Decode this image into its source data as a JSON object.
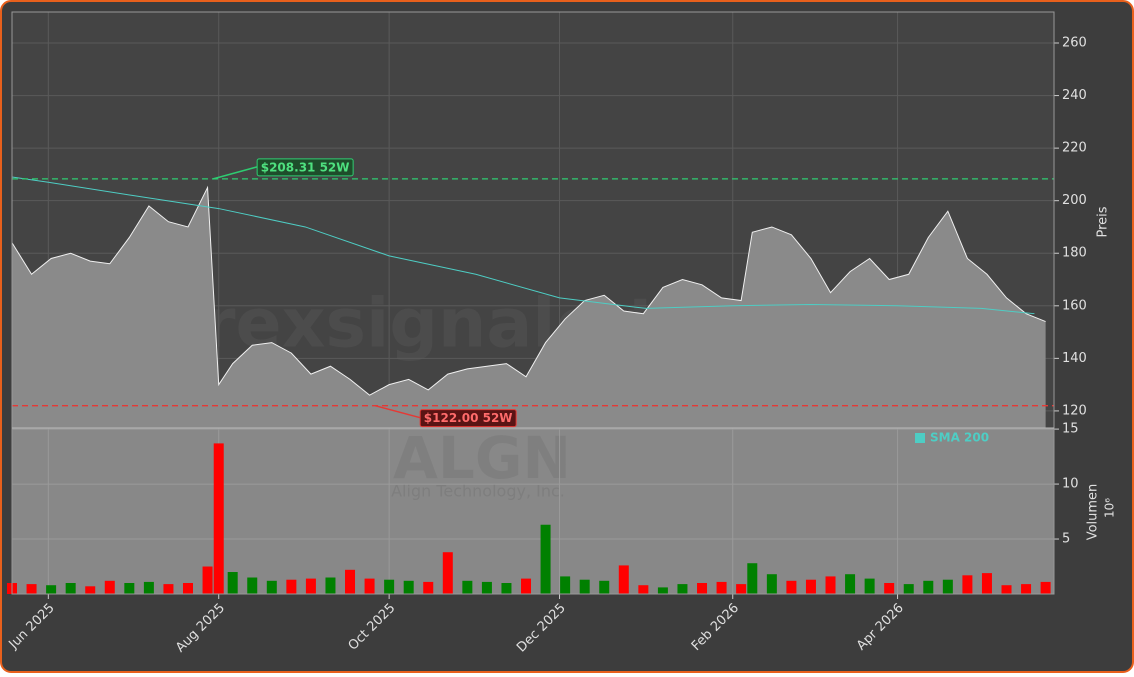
{
  "chart_data": [
    {
      "type": "area",
      "x": [
        "2025-05-19",
        "2025-05-26",
        "2025-06-02",
        "2025-06-09",
        "2025-06-16",
        "2025-06-23",
        "2025-06-30",
        "2025-07-07",
        "2025-07-14",
        "2025-07-21",
        "2025-07-28",
        "2025-08-01",
        "2025-08-06",
        "2025-08-13",
        "2025-08-20",
        "2025-08-27",
        "2025-09-03",
        "2025-09-10",
        "2025-09-17",
        "2025-09-24",
        "2025-10-01",
        "2025-10-08",
        "2025-10-15",
        "2025-10-22",
        "2025-10-29",
        "2025-11-05",
        "2025-11-12",
        "2025-11-19",
        "2025-11-26",
        "2025-12-03",
        "2025-12-10",
        "2025-12-17",
        "2025-12-24",
        "2025-12-31",
        "2026-01-07",
        "2026-01-14",
        "2026-01-21",
        "2026-01-28",
        "2026-02-04",
        "2026-02-08",
        "2026-02-15",
        "2026-02-22",
        "2026-03-01",
        "2026-03-08",
        "2026-03-15",
        "2026-03-22",
        "2026-03-29",
        "2026-04-05",
        "2026-04-12",
        "2026-04-19",
        "2026-04-26",
        "2026-05-03",
        "2026-05-10",
        "2026-05-17",
        "2026-05-24"
      ],
      "values": [
        184,
        172,
        178,
        180,
        177,
        176,
        186,
        198,
        192,
        190,
        205,
        130,
        138,
        145,
        146,
        142,
        134,
        137,
        132,
        126,
        130,
        132,
        128,
        134,
        136,
        137,
        138,
        133,
        146,
        155,
        162,
        164,
        158,
        157,
        167,
        170,
        168,
        163,
        162,
        188,
        190,
        187,
        178,
        165,
        173,
        178,
        170,
        172,
        186,
        196,
        178,
        172,
        163,
        157,
        154
      ],
      "color": "#8a8a8a",
      "lines": [
        {
          "name": "SMA 200",
          "color": "#4ecdc4",
          "x": [
            "2025-05-19",
            "2025-06-01",
            "2025-07-01",
            "2025-08-01",
            "2025-09-01",
            "2025-10-01",
            "2025-11-01",
            "2025-12-01",
            "2026-01-01",
            "2026-02-01",
            "2026-03-01",
            "2026-04-01",
            "2026-05-01",
            "2026-05-20"
          ],
          "values": [
            209,
            207,
            202,
            197,
            190,
            179,
            172,
            163,
            159,
            160,
            160.5,
            160,
            159,
            157
          ]
        }
      ],
      "annotations": [
        {
          "text": "$208.31 52W",
          "value": 208.31,
          "x": "2025-07-30",
          "color": "#2ecc71"
        },
        {
          "text": "$122.00 52W",
          "value": 122.0,
          "x": "2025-09-26",
          "color": "#e53935"
        }
      ],
      "xlim": [
        "2025-05-19",
        "2026-05-27"
      ],
      "ylim": [
        113.5,
        271.8
      ],
      "yticks": [
        120,
        140,
        160,
        180,
        200,
        220,
        240,
        260
      ],
      "ylabel": "Preis",
      "grid": true,
      "watermark": [
        "forexsignale.trade",
        "ALGN",
        "Align Technology, Inc."
      ]
    },
    {
      "type": "bar",
      "values": [
        1.0,
        0.9,
        0.8,
        1.0,
        0.7,
        1.2,
        1.0,
        1.1,
        0.9,
        1.0,
        2.5,
        13.7,
        2.0,
        1.5,
        1.2,
        1.3,
        1.4,
        1.5,
        2.2,
        1.4,
        1.3,
        1.2,
        1.1,
        3.8,
        1.2,
        1.1,
        1.0,
        1.4,
        6.3,
        1.6,
        1.3,
        1.2,
        2.6,
        0.8,
        0.6,
        0.9,
        1.0,
        1.1,
        0.9,
        2.8,
        1.8,
        1.2,
        1.3,
        1.6,
        1.8,
        1.4,
        1.0,
        0.9,
        1.2,
        1.3,
        1.7,
        1.9,
        0.8,
        0.9,
        1.1
      ],
      "colors": [
        "#ff0000",
        "#ff0000",
        "#008000",
        "#008000",
        "#ff0000",
        "#ff0000",
        "#008000",
        "#008000",
        "#ff0000",
        "#ff0000",
        "#ff0000",
        "#ff0000",
        "#008000",
        "#008000",
        "#008000",
        "#ff0000",
        "#ff0000",
        "#008000",
        "#ff0000",
        "#ff0000",
        "#008000",
        "#008000",
        "#ff0000",
        "#ff0000",
        "#008000",
        "#008000",
        "#008000",
        "#ff0000",
        "#008000",
        "#008000",
        "#008000",
        "#008000",
        "#ff0000",
        "#ff0000",
        "#008000",
        "#008000",
        "#ff0000",
        "#ff0000",
        "#ff0000",
        "#008000",
        "#008000",
        "#ff0000",
        "#ff0000",
        "#ff0000",
        "#008000",
        "#008000",
        "#ff0000",
        "#008000",
        "#008000",
        "#008000",
        "#ff0000",
        "#ff0000",
        "#ff0000",
        "#ff0000",
        "#ff0000"
      ],
      "ylim": [
        0,
        15.1
      ],
      "yticks": [
        5,
        10,
        15
      ],
      "ylabel": "Volumen",
      "exponent": "10⁶",
      "xticks": [
        {
          "value": "2025-06-01",
          "label": "Jun 2025"
        },
        {
          "value": "2025-08-01",
          "label": "Aug 2025"
        },
        {
          "value": "2025-10-01",
          "label": "Oct 2025"
        },
        {
          "value": "2025-12-01",
          "label": "Dec 2025"
        },
        {
          "value": "2026-02-01",
          "label": "Feb 2026"
        },
        {
          "value": "2026-04-01",
          "label": "Apr 2026"
        }
      ],
      "grid": true
    }
  ]
}
